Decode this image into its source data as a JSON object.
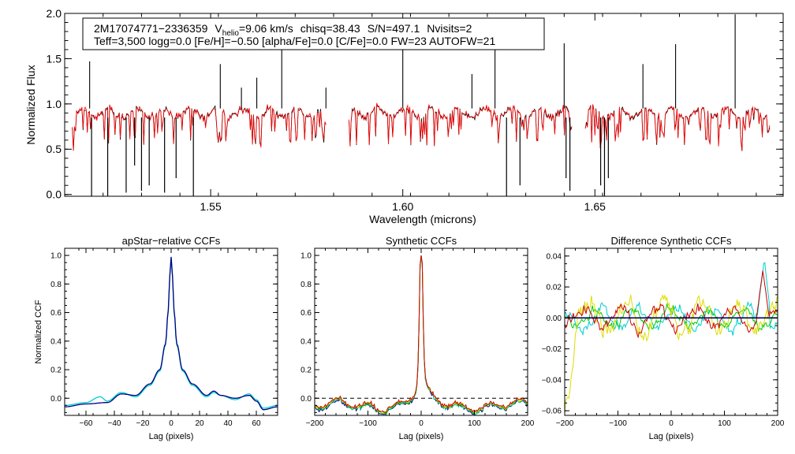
{
  "chart_data": [
    {
      "type": "line",
      "id": "spectrum",
      "title": "",
      "xlabel": "Wavelength (microns)",
      "ylabel": "Normalized Flux",
      "xlim": [
        1.512,
        1.699
      ],
      "ylim": [
        -0.02,
        2.0
      ],
      "xticks": [
        1.55,
        1.6,
        1.65
      ],
      "xtick_labels": [
        "1.55",
        "1.60",
        "1.65"
      ],
      "yticks": [
        0.0,
        0.5,
        1.0,
        1.5,
        2.0
      ],
      "ytick_labels": [
        "0.0",
        "0.5",
        "1.0",
        "1.5",
        "2.0"
      ],
      "info_line1": {
        "id": "2M17074771−2336359",
        "v_prefix": "V",
        "v_sub": "helio",
        "v_rest": "=9.06 km/s",
        "chisq": "chisq=38.43",
        "sn": "S/N=497.1",
        "nvisits": "Nvisits=2"
      },
      "info_line2": "Teff=3,500 logg=0.0 [Fe/H]=−0.50 [alpha/Fe]=0.0 [C/Fe]=0.0 FW=23 AUTOFW=21",
      "chips": [
        [
          1.514,
          1.58
        ],
        [
          1.586,
          1.644
        ],
        [
          1.6475,
          1.6955
        ]
      ],
      "spikes_up": [
        [
          1.5185,
          1.47
        ],
        [
          1.5525,
          1.44
        ],
        [
          1.558,
          1.18
        ],
        [
          1.562,
          1.29
        ],
        [
          1.5685,
          1.67
        ],
        [
          1.58,
          1.18
        ],
        [
          1.6,
          1.67
        ],
        [
          1.618,
          1.33
        ],
        [
          1.624,
          1.71
        ],
        [
          1.642,
          1.67
        ],
        [
          1.6625,
          1.44
        ],
        [
          1.671,
          1.66
        ],
        [
          1.6865,
          1.99
        ]
      ],
      "spikes_down": [
        [
          1.519,
          -0.02
        ],
        [
          1.5232,
          -0.02
        ],
        [
          1.528,
          0.02
        ],
        [
          1.5302,
          0.32
        ],
        [
          1.532,
          0.04
        ],
        [
          1.534,
          0.1
        ],
        [
          1.538,
          0.02
        ],
        [
          1.541,
          0.18
        ],
        [
          1.5455,
          -0.02
        ],
        [
          1.627,
          -0.02
        ],
        [
          1.6305,
          0.1
        ],
        [
          1.6425,
          0.18
        ],
        [
          1.6435,
          0.04
        ],
        [
          1.6515,
          0.1
        ],
        [
          1.6525,
          -0.02
        ],
        [
          1.6535,
          0.18
        ]
      ],
      "series": [
        {
          "name": "observed",
          "color": "#000000",
          "values": "approx. 0.9 ± 0.15 continuum with absorption lines"
        },
        {
          "name": "model",
          "color": "#ff0000",
          "values": "synthetic fit tracking observed spectrum"
        }
      ]
    },
    {
      "type": "line",
      "id": "apstar_ccf",
      "title": "apStar−relative CCFs",
      "xlabel": "Lag (pixels)",
      "ylabel": "Normalized CCF",
      "xlim": [
        -75,
        75
      ],
      "ylim": [
        -0.12,
        1.05
      ],
      "xticks": [
        -60,
        -40,
        -20,
        0,
        20,
        40,
        60
      ],
      "xtick_labels": [
        "−60",
        "−40",
        "−20",
        "0",
        "20",
        "40",
        "60"
      ],
      "yticks": [
        0.0,
        0.2,
        0.4,
        0.6,
        0.8,
        1.0
      ],
      "ytick_labels": [
        "0.0",
        "0.2",
        "0.4",
        "0.6",
        "0.8",
        "1.0"
      ],
      "series": [
        {
          "name": "visit 1",
          "color": "#000080",
          "x": [
            -75,
            -60,
            -45,
            -35,
            -25,
            -15,
            -8,
            -4,
            -2,
            -1,
            0,
            1,
            2,
            4,
            8,
            15,
            25,
            30,
            35,
            45,
            55,
            60,
            65,
            75
          ],
          "values": [
            -0.06,
            -0.04,
            -0.03,
            0.03,
            0.02,
            0.1,
            0.2,
            0.38,
            0.62,
            0.85,
            0.99,
            0.85,
            0.62,
            0.38,
            0.2,
            0.1,
            0.02,
            0.05,
            0.02,
            0.0,
            0.02,
            -0.02,
            -0.08,
            -0.06
          ]
        },
        {
          "name": "visit 2",
          "color": "#00cccc",
          "x": [
            -75,
            -60,
            -50,
            -45,
            -35,
            -25,
            -15,
            -8,
            -4,
            -2,
            -1,
            0,
            1,
            2,
            4,
            8,
            15,
            25,
            30,
            35,
            45,
            55,
            60,
            65,
            75
          ],
          "values": [
            -0.05,
            -0.03,
            0.01,
            -0.02,
            0.04,
            0.01,
            0.09,
            0.19,
            0.37,
            0.61,
            0.84,
            0.98,
            0.84,
            0.61,
            0.37,
            0.19,
            0.09,
            0.01,
            0.04,
            0.02,
            -0.01,
            0.03,
            -0.01,
            -0.07,
            -0.05
          ]
        }
      ]
    },
    {
      "type": "line",
      "id": "synthetic_ccf",
      "title": "Synthetic CCFs",
      "xlabel": "Lag (pixels)",
      "ylabel": "",
      "xlim": [
        -200,
        200
      ],
      "ylim": [
        -0.12,
        1.05
      ],
      "xticks": [
        -200,
        -100,
        0,
        100,
        200
      ],
      "xtick_labels": [
        "−200",
        "−100",
        "0",
        "100",
        "200"
      ],
      "yticks": [
        0.0,
        0.2,
        0.4,
        0.6,
        0.8,
        1.0
      ],
      "ytick_labels": [
        "0.0",
        "0.2",
        "0.4",
        "0.6",
        "0.8",
        "1.0"
      ],
      "zero_line": 0.0,
      "series": [
        {
          "name": "ccf 1",
          "color": "#000080",
          "values": "peak 1.0 at lag 0, baseline about −0.05 ± 0.04"
        },
        {
          "name": "ccf 2",
          "color": "#00cccc",
          "values": "peak 1.0 at lag 0"
        },
        {
          "name": "ccf 3",
          "color": "#00cc00",
          "values": "peak 1.0 at lag 0"
        },
        {
          "name": "ccf 4",
          "color": "#dddd00",
          "values": "peak 1.0 at lag 0"
        },
        {
          "name": "ccf 5",
          "color": "#cc0000",
          "values": "peak 1.0 at lag 0"
        }
      ]
    },
    {
      "type": "line",
      "id": "difference_ccf",
      "title": "Difference Synthetic CCFs",
      "xlabel": "Lag (pixels)",
      "ylabel": "",
      "xlim": [
        -200,
        200
      ],
      "ylim": [
        -0.063,
        0.045
      ],
      "xticks": [
        -200,
        -100,
        0,
        100,
        200
      ],
      "xtick_labels": [
        "−200",
        "−100",
        "0",
        "100",
        "200"
      ],
      "yticks": [
        -0.06,
        -0.04,
        -0.02,
        0.0,
        0.02,
        0.04
      ],
      "ytick_labels": [
        "−0.06",
        "−0.04",
        "−0.02",
        "0.00",
        "0.02",
        "0.04"
      ],
      "zero_line": 0.0,
      "series": [
        {
          "name": "diff 1",
          "color": "#000080",
          "values": "approximately 0 across all lags"
        },
        {
          "name": "diff 2",
          "color": "#00cccc",
          "values": "±0.01 oscillation, peak 0.04 near lag 175"
        },
        {
          "name": "diff 3",
          "color": "#00cc00",
          "values": "±0.01 oscillation"
        },
        {
          "name": "diff 4",
          "color": "#dddd00",
          "values": "±0.02 oscillation, minimum −0.058 near lag −195"
        },
        {
          "name": "diff 5",
          "color": "#cc0000",
          "values": "±0.01 oscillation, peak 0.03 near lag 170"
        }
      ]
    }
  ]
}
